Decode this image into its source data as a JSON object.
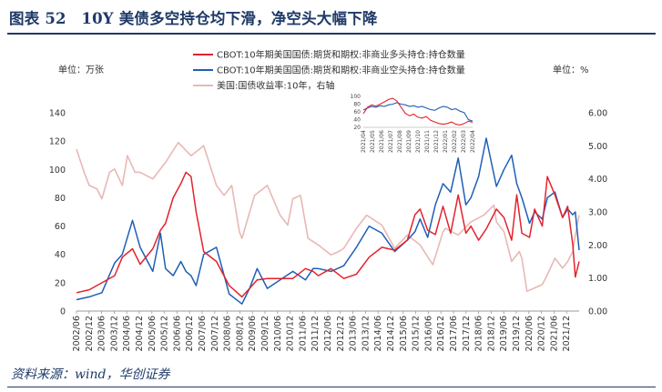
{
  "header": {
    "title": "图表 52　10Y 美债多空持仓均下滑，净空头大幅下降",
    "source": "资料来源：wind，华创证券"
  },
  "colors": {
    "long": "#e3232c",
    "short": "#1f5fb5",
    "yield": "#e8b8b4",
    "title": "#1f3a68"
  },
  "chart_data": {
    "type": "line",
    "left_unit": "单位：万张",
    "right_unit": "单位：%",
    "legend": [
      "CBOT:10年期美国国债:期货和期权:非商业多头持仓:持仓数量",
      "CBOT:10年期美国国债:期货和期权:非商业空头持仓:持仓数量",
      "美国:国债收益率:10年，右轴"
    ],
    "ylim_left": [
      0,
      140
    ],
    "yticks_left": [
      "0",
      "20",
      "40",
      "60",
      "80",
      "100",
      "120",
      "140"
    ],
    "ylim_right": [
      0,
      6
    ],
    "yticks_right": [
      "0.00",
      "1.00",
      "2.00",
      "3.00",
      "4.00",
      "5.00",
      "6.00"
    ],
    "xlim": [
      2002.5,
      2022.25
    ],
    "xticks": [
      "2002/06",
      "2002/12",
      "2003/06",
      "2003/12",
      "2004/06",
      "2004/12",
      "2005/06",
      "2005/12",
      "2006/06",
      "2006/12",
      "2007/06",
      "2007/12",
      "2008/06",
      "2008/12",
      "2009/06",
      "2009/12",
      "2010/06",
      "2010/12",
      "2011/06",
      "2011/12",
      "2012/06",
      "2012/12",
      "2013/06",
      "2013/12",
      "2014/06",
      "2014/12",
      "2015/06",
      "2015/12",
      "2016/06",
      "2016/12",
      "2017/06",
      "2017/12",
      "2018/06",
      "2018/12",
      "2019/06",
      "2019/12",
      "2020/06",
      "2020/12",
      "2021/06",
      "2021/12"
    ],
    "series": [
      {
        "name": "CBOT:10年期美国国债:期货和期权:非商业多头持仓:持仓数量",
        "axis": "left",
        "x": [
          2002.5,
          2003.0,
          2003.5,
          2004.0,
          2004.3,
          2004.7,
          2005.0,
          2005.5,
          2005.8,
          2006.0,
          2006.3,
          2006.6,
          2006.8,
          2007.0,
          2007.2,
          2007.5,
          2008.0,
          2008.5,
          2009.0,
          2009.3,
          2009.6,
          2010.0,
          2010.5,
          2011.0,
          2011.5,
          2011.8,
          2012.0,
          2012.5,
          2013.0,
          2013.5,
          2014.0,
          2014.5,
          2015.0,
          2015.5,
          2015.8,
          2016.0,
          2016.3,
          2016.6,
          2016.9,
          2017.2,
          2017.5,
          2017.8,
          2018.0,
          2018.3,
          2018.6,
          2019.0,
          2019.3,
          2019.6,
          2019.8,
          2020.0,
          2020.3,
          2020.5,
          2020.8,
          2021.0,
          2021.3,
          2021.6,
          2021.8,
          2022.0,
          2022.1,
          2022.25
        ],
        "values": [
          13,
          15,
          20,
          25,
          38,
          44,
          33,
          44,
          57,
          62,
          80,
          90,
          98,
          95,
          70,
          42,
          35,
          18,
          10,
          16,
          22,
          23,
          23,
          23,
          30,
          28,
          25,
          30,
          23,
          26,
          38,
          45,
          43,
          50,
          68,
          72,
          57,
          54,
          74,
          55,
          82,
          55,
          60,
          50,
          58,
          72,
          66,
          50,
          82,
          55,
          52,
          72,
          60,
          95,
          82,
          66,
          74,
          47,
          24,
          35
        ]
      },
      {
        "name": "CBOT:10年期美国国债:期货和期权:非商业空头持仓:持仓数量",
        "axis": "left",
        "x": [
          2002.5,
          2003.0,
          2003.5,
          2004.0,
          2004.3,
          2004.7,
          2005.0,
          2005.5,
          2005.8,
          2006.0,
          2006.3,
          2006.6,
          2006.8,
          2007.0,
          2007.2,
          2007.5,
          2008.0,
          2008.5,
          2009.0,
          2009.3,
          2009.6,
          2010.0,
          2010.5,
          2011.0,
          2011.5,
          2011.8,
          2012.0,
          2012.5,
          2013.0,
          2013.5,
          2014.0,
          2014.5,
          2015.0,
          2015.5,
          2015.8,
          2016.0,
          2016.3,
          2016.6,
          2016.9,
          2017.2,
          2017.5,
          2017.8,
          2018.0,
          2018.3,
          2018.6,
          2019.0,
          2019.3,
          2019.6,
          2019.8,
          2020.0,
          2020.3,
          2020.5,
          2020.8,
          2021.0,
          2021.3,
          2021.6,
          2021.8,
          2022.0,
          2022.1,
          2022.25
        ],
        "values": [
          8,
          10,
          13,
          34,
          40,
          64,
          45,
          28,
          55,
          30,
          25,
          35,
          28,
          25,
          18,
          40,
          45,
          12,
          5,
          16,
          30,
          16,
          22,
          28,
          22,
          30,
          30,
          28,
          32,
          45,
          60,
          55,
          42,
          50,
          56,
          65,
          52,
          75,
          90,
          84,
          108,
          75,
          80,
          95,
          122,
          88,
          100,
          110,
          90,
          80,
          62,
          70,
          65,
          80,
          84,
          66,
          72,
          68,
          70,
          43
        ]
      },
      {
        "name": "美国:国债收益率:10年，右轴",
        "axis": "right",
        "x": [
          2002.5,
          2002.8,
          2003.0,
          2003.3,
          2003.5,
          2003.8,
          2004.0,
          2004.3,
          2004.5,
          2004.8,
          2005.0,
          2005.5,
          2006.0,
          2006.5,
          2007.0,
          2007.5,
          2008.0,
          2008.3,
          2008.6,
          2008.9,
          2009.0,
          2009.5,
          2010.0,
          2010.5,
          2010.8,
          2011.0,
          2011.3,
          2011.6,
          2012.0,
          2012.5,
          2012.8,
          2013.0,
          2013.5,
          2013.9,
          2014.5,
          2015.0,
          2015.5,
          2016.0,
          2016.5,
          2016.9,
          2017.0,
          2017.5,
          2018.0,
          2018.5,
          2018.9,
          2019.0,
          2019.3,
          2019.6,
          2019.9,
          2020.0,
          2020.2,
          2020.5,
          2020.8,
          2021.0,
          2021.3,
          2021.6,
          2021.8,
          2022.0,
          2022.1,
          2022.25
        ],
        "values": [
          4.9,
          4.2,
          3.8,
          3.7,
          3.4,
          4.2,
          4.3,
          3.8,
          4.7,
          4.2,
          4.2,
          4.0,
          4.5,
          5.1,
          4.7,
          5.0,
          3.8,
          3.5,
          3.8,
          2.4,
          2.2,
          3.5,
          3.8,
          2.9,
          2.6,
          3.4,
          3.5,
          2.2,
          2.0,
          1.7,
          1.8,
          1.9,
          2.5,
          2.9,
          2.6,
          1.9,
          2.3,
          2.0,
          1.4,
          2.4,
          2.5,
          2.3,
          2.7,
          2.9,
          3.2,
          2.7,
          2.4,
          1.5,
          1.8,
          1.6,
          0.6,
          0.7,
          0.8,
          1.1,
          1.6,
          1.3,
          1.5,
          1.8,
          2.3,
          2.9
        ]
      }
    ],
    "inset": {
      "yticks": [
        "20",
        "40",
        "60",
        "80",
        "100"
      ],
      "ylim": [
        20,
        100
      ],
      "xticks": [
        "2021/04",
        "2021/05",
        "2021/06",
        "2021/07",
        "2021/08",
        "2021/09",
        "2021/10",
        "2021/11",
        "2021/12",
        "2022/01",
        "2022/02",
        "2022/03",
        "2022/04"
      ],
      "long_values": [
        55,
        72,
        78,
        75,
        80,
        86,
        92,
        95,
        88,
        72,
        56,
        50,
        54,
        46,
        44,
        48,
        38,
        34,
        30,
        28,
        30,
        34,
        28,
        26,
        30,
        36,
        33
      ],
      "short_values": [
        65,
        70,
        74,
        72,
        76,
        74,
        78,
        80,
        84,
        80,
        78,
        74,
        76,
        72,
        74,
        70,
        66,
        64,
        70,
        74,
        72,
        66,
        68,
        62,
        58,
        40,
        36
      ]
    }
  }
}
